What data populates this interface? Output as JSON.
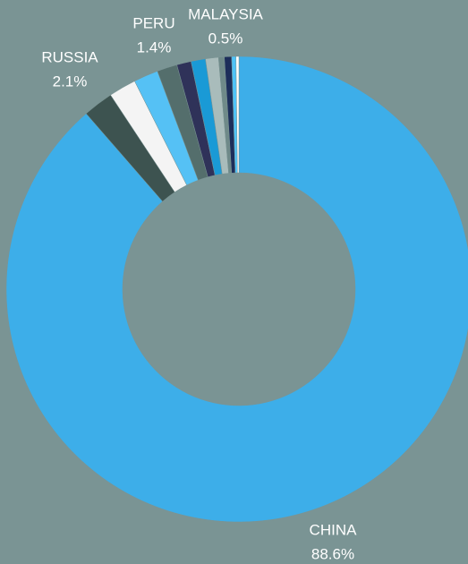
{
  "chart_data": {
    "type": "donut",
    "categories": [
      "CHINA",
      "RUSSIA",
      null,
      null,
      "PERU",
      null,
      null,
      null,
      null,
      "MALAYSIA",
      null,
      null
    ],
    "values": [
      88.6,
      2.1,
      1.9,
      1.7,
      1.4,
      1.0,
      1.0,
      0.9,
      0.4,
      0.5,
      0.3,
      0.2
    ],
    "value_labels": [
      "88.6%",
      "2.1%",
      null,
      null,
      "1.4%",
      null,
      null,
      null,
      null,
      "0.5%",
      null,
      null
    ],
    "colors": [
      "#3daee9",
      "#3d5350",
      "#f4f4f4",
      "#55c1f5",
      "#546e6c",
      "#2f3259",
      "#1a9ad6",
      "#a9bcbb",
      "#6f8a89",
      "#1d2e5a",
      "#4fc3f7",
      "#ffffff"
    ]
  }
}
